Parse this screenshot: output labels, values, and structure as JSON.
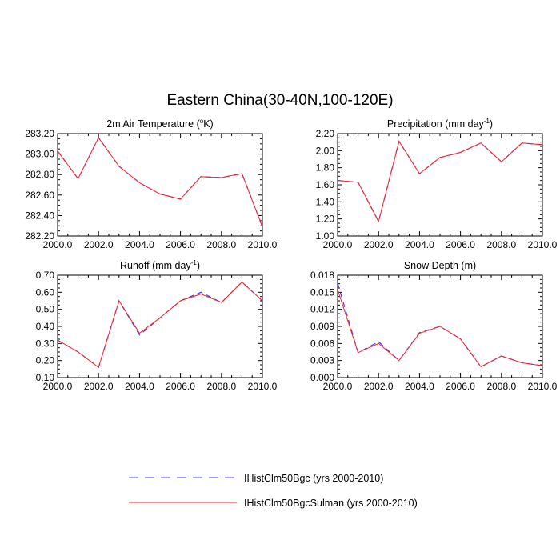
{
  "figure": {
    "title": "Eastern China(30-40N,100-120E)"
  },
  "legend": [
    {
      "label": "IHistClm50Bgc (yrs 2000-2010)",
      "color": "#3b3bff",
      "dash": "dashed"
    },
    {
      "label": "IHistClm50BgcSulman (yrs 2000-2010)",
      "color": "#ff2020",
      "dash": "solid"
    }
  ],
  "chart_data": [
    {
      "type": "line",
      "title": "2m Air Temperature (°K)",
      "title_main": "2m Air Temperature (",
      "title_sup": "o",
      "title_tail": "K)",
      "x": [
        2000,
        2001,
        2002,
        2003,
        2004,
        2005,
        2006,
        2007,
        2008,
        2009,
        2010
      ],
      "xlim": [
        2000,
        2010
      ],
      "xticks": [
        "2000.0",
        "2002.0",
        "2004.0",
        "2006.0",
        "2008.0",
        "2010.0"
      ],
      "ylim": [
        282.2,
        283.2
      ],
      "yticks": [
        "282.20",
        "282.40",
        "282.60",
        "282.80",
        "283.00",
        "283.20"
      ],
      "series": [
        {
          "name": "IHistClm50Bgc (yrs 2000-2010)",
          "values": [
            283.03,
            282.76,
            283.16,
            282.88,
            282.72,
            282.61,
            282.56,
            282.78,
            282.77,
            282.81,
            282.29
          ]
        },
        {
          "name": "IHistClm50BgcSulman (yrs 2000-2010)",
          "values": [
            283.03,
            282.76,
            283.16,
            282.88,
            282.72,
            282.61,
            282.56,
            282.78,
            282.77,
            282.81,
            282.29
          ]
        }
      ]
    },
    {
      "type": "line",
      "title": "Precipitation (mm day-1)",
      "title_main": "Precipitation (mm day",
      "title_sup": "-1",
      "title_tail": ")",
      "x": [
        2000,
        2001,
        2002,
        2003,
        2004,
        2005,
        2006,
        2007,
        2008,
        2009,
        2010
      ],
      "xlim": [
        2000,
        2010
      ],
      "xticks": [
        "2000.0",
        "2002.0",
        "2004.0",
        "2006.0",
        "2008.0",
        "2010.0"
      ],
      "ylim": [
        1.0,
        2.2
      ],
      "yticks": [
        "1.00",
        "1.20",
        "1.40",
        "1.60",
        "1.80",
        "2.00",
        "2.20"
      ],
      "series": [
        {
          "name": "IHistClm50Bgc (yrs 2000-2010)",
          "values": [
            1.65,
            1.63,
            1.17,
            2.11,
            1.73,
            1.92,
            1.98,
            2.09,
            1.87,
            2.09,
            2.07
          ]
        },
        {
          "name": "IHistClm50BgcSulman (yrs 2000-2010)",
          "values": [
            1.65,
            1.63,
            1.17,
            2.11,
            1.73,
            1.92,
            1.98,
            2.09,
            1.87,
            2.09,
            2.07
          ]
        }
      ]
    },
    {
      "type": "line",
      "title": "Runoff (mm day-1)",
      "title_main": "Runoff (mm day",
      "title_sup": "-1",
      "title_tail": ")",
      "x": [
        2000,
        2001,
        2002,
        2003,
        2004,
        2005,
        2006,
        2007,
        2008,
        2009,
        2010
      ],
      "xlim": [
        2000,
        2010
      ],
      "xticks": [
        "2000.0",
        "2002.0",
        "2004.0",
        "2006.0",
        "2008.0",
        "2010.0"
      ],
      "ylim": [
        0.1,
        0.7
      ],
      "yticks": [
        "0.10",
        "0.20",
        "0.30",
        "0.40",
        "0.50",
        "0.60",
        "0.70"
      ],
      "series": [
        {
          "name": "IHistClm50Bgc (yrs 2000-2010)",
          "values": [
            0.32,
            0.25,
            0.16,
            0.55,
            0.35,
            0.45,
            0.55,
            0.6,
            0.54,
            0.66,
            0.55
          ]
        },
        {
          "name": "IHistClm50BgcSulman (yrs 2000-2010)",
          "values": [
            0.32,
            0.25,
            0.16,
            0.55,
            0.36,
            0.45,
            0.55,
            0.59,
            0.54,
            0.66,
            0.55
          ]
        }
      ]
    },
    {
      "type": "line",
      "title": "Snow Depth (m)",
      "title_main": "Snow Depth (m)",
      "title_sup": "",
      "title_tail": "",
      "x": [
        2000,
        2001,
        2002,
        2003,
        2004,
        2005,
        2006,
        2007,
        2008,
        2009,
        2010
      ],
      "xlim": [
        2000,
        2010
      ],
      "xticks": [
        "2000.0",
        "2002.0",
        "2004.0",
        "2006.0",
        "2008.0",
        "2010.0"
      ],
      "ylim": [
        0.0,
        0.018
      ],
      "yticks": [
        "0.000",
        "0.003",
        "0.006",
        "0.009",
        "0.012",
        "0.015",
        "0.018"
      ],
      "series": [
        {
          "name": "IHistClm50Bgc (yrs 2000-2010)",
          "values": [
            0.0166,
            0.0044,
            0.0063,
            0.003,
            0.0079,
            0.009,
            0.0068,
            0.0019,
            0.0038,
            0.0026,
            0.0021
          ]
        },
        {
          "name": "IHistClm50BgcSulman (yrs 2000-2010)",
          "values": [
            0.0155,
            0.0044,
            0.006,
            0.003,
            0.0078,
            0.009,
            0.0068,
            0.0019,
            0.0038,
            0.0026,
            0.0021
          ]
        }
      ]
    }
  ]
}
